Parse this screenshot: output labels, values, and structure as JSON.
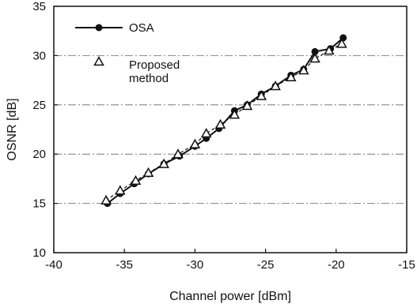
{
  "chart_data": {
    "type": "line",
    "xlabel": "Channel power [dBm]",
    "ylabel": "OSNR [dB]",
    "xlim": [
      -40,
      -15
    ],
    "ylim": [
      10,
      35
    ],
    "xticks": [
      "-40",
      "-35",
      "-30",
      "-25",
      "-20",
      "-15"
    ],
    "yticks": [
      "10",
      "15",
      "20",
      "25",
      "30",
      "35"
    ],
    "grid": "horizontal dashed",
    "legend": "top-left",
    "series": [
      {
        "name": "OSA",
        "marker": "filled-circle",
        "line": "solid",
        "color": "#111111",
        "points": [
          [
            -36.2,
            15.0
          ],
          [
            -35.3,
            16.0
          ],
          [
            -34.3,
            17.0
          ],
          [
            -33.3,
            18.0
          ],
          [
            -32.2,
            19.0
          ],
          [
            -31.1,
            19.8
          ],
          [
            -30.0,
            20.8
          ],
          [
            -29.2,
            21.6
          ],
          [
            -28.3,
            22.6
          ],
          [
            -27.2,
            24.4
          ],
          [
            -26.3,
            25.0
          ],
          [
            -25.3,
            26.1
          ],
          [
            -24.3,
            26.9
          ],
          [
            -23.2,
            28.0
          ],
          [
            -22.3,
            28.6
          ],
          [
            -21.5,
            30.4
          ],
          [
            -20.4,
            30.7
          ],
          [
            -19.5,
            31.8
          ]
        ]
      },
      {
        "name": "Proposed\nmethod",
        "label_lines": [
          "Proposed",
          "method"
        ],
        "marker": "open-triangle",
        "line": "dashed",
        "color": "#111111",
        "points": [
          [
            -36.3,
            15.3
          ],
          [
            -35.3,
            16.3
          ],
          [
            -34.2,
            17.3
          ],
          [
            -33.3,
            18.1
          ],
          [
            -32.2,
            19.0
          ],
          [
            -31.2,
            20.0
          ],
          [
            -30.0,
            21.0
          ],
          [
            -29.2,
            22.1
          ],
          [
            -28.2,
            23.0
          ],
          [
            -27.2,
            24.0
          ],
          [
            -26.3,
            24.9
          ],
          [
            -25.3,
            25.9
          ],
          [
            -24.3,
            26.9
          ],
          [
            -23.2,
            27.8
          ],
          [
            -22.3,
            28.5
          ],
          [
            -21.5,
            29.7
          ],
          [
            -20.5,
            30.5
          ],
          [
            -19.6,
            31.2
          ]
        ]
      }
    ]
  }
}
